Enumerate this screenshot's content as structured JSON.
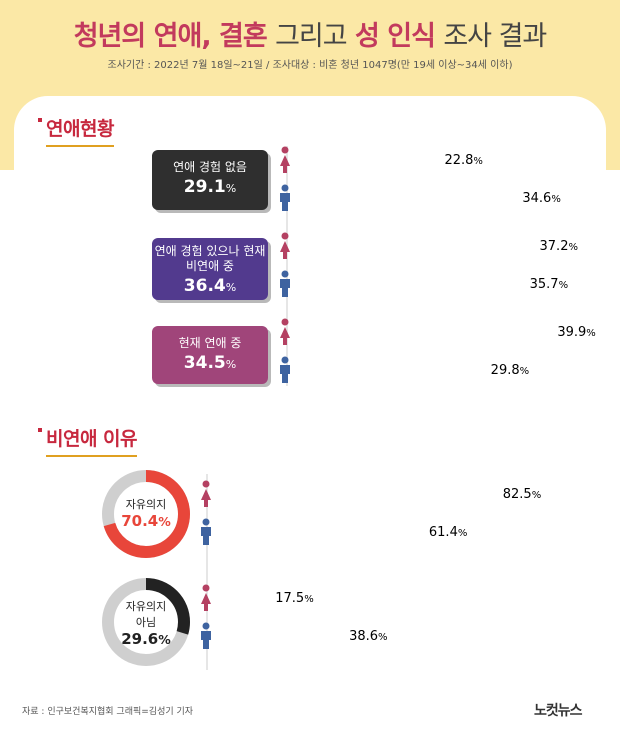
{
  "header": {
    "title_part1": "청년의 연애, 결혼",
    "title_part2": "그리고",
    "title_part3": "성 인식",
    "title_part4": "조사 결과",
    "subtitle": "조사기간 : 2022년 7월 18일~21일 / 조사대상 : 비혼 청년 1047명(만 19세 이상~34세 이하)"
  },
  "section1": {
    "heading": "연애현황"
  },
  "section2": {
    "heading": "비연애 이유"
  },
  "colors": {
    "female": "#b44162",
    "male": "#3e63a0",
    "accent": "#c7283e",
    "band": "#fbe8a6"
  },
  "chart_data": [
    {
      "type": "bar",
      "title": "연애현황",
      "categories": [
        {
          "label": "연애 경험 없음",
          "total": "29.1"
        },
        {
          "label": "연애 경험 있으나 현재 비연애 중",
          "total": "36.4"
        },
        {
          "label": "현재 연애 중",
          "total": "34.5"
        }
      ],
      "series": [
        {
          "gender": "female",
          "values": [
            "22.8",
            "37.2",
            "39.9"
          ]
        },
        {
          "gender": "male",
          "values": [
            "34.6",
            "35.7",
            "29.8"
          ]
        }
      ],
      "unit": "%"
    },
    {
      "type": "bar",
      "title": "비연애 이유",
      "categories": [
        {
          "label": "자유의지",
          "total": "70.4"
        },
        {
          "label": "자유의지 아님",
          "total": "29.6"
        }
      ],
      "series": [
        {
          "gender": "female",
          "values": [
            "82.5",
            "17.5"
          ]
        },
        {
          "gender": "male",
          "values": [
            "61.4",
            "38.6"
          ]
        }
      ],
      "unit": "%"
    }
  ],
  "footer": {
    "source": "자료 : 인구보건복지협회    그래픽=김성기 기자",
    "logo": "노컷뉴스"
  }
}
